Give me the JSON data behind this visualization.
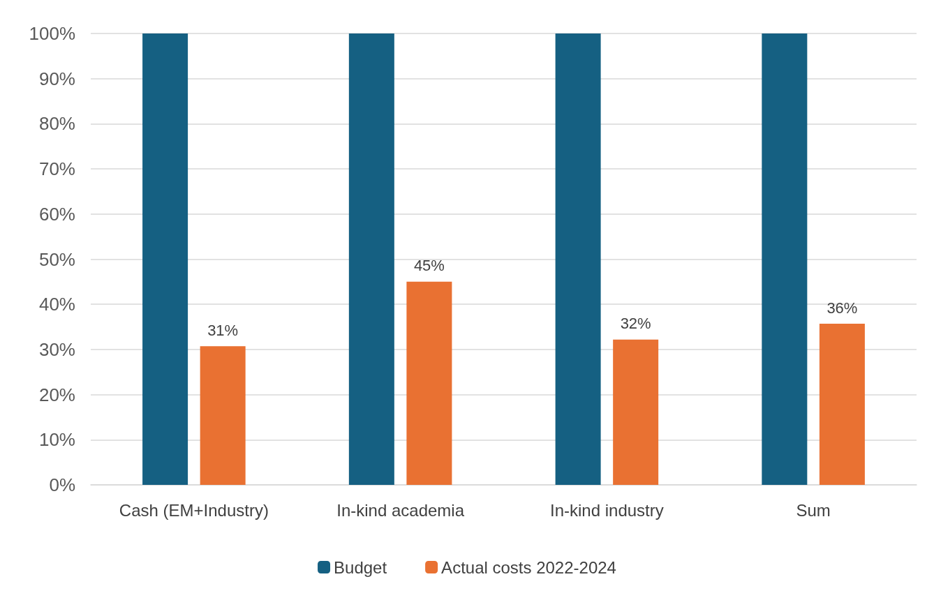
{
  "chart_data": {
    "type": "bar",
    "categories": [
      "Cash (EM+Industry)",
      "In-kind academia",
      "In-kind industry",
      "Sum"
    ],
    "series": [
      {
        "name": "Budget",
        "color": "#156082",
        "values": [
          100,
          100,
          100,
          100
        ]
      },
      {
        "name": "Actual costs 2022-2024",
        "color": "#e97132",
        "values": [
          30.7,
          45,
          32.2,
          35.7
        ],
        "value_labels": [
          "31%",
          "45%",
          "32%",
          "36%"
        ]
      }
    ],
    "ylim": [
      0,
      100
    ],
    "yticks": [
      {
        "value": 0,
        "label": "0%"
      },
      {
        "value": 10,
        "label": "10%"
      },
      {
        "value": 20,
        "label": "20%"
      },
      {
        "value": 30,
        "label": "30%"
      },
      {
        "value": 40,
        "label": "40%"
      },
      {
        "value": 50,
        "label": "50%"
      },
      {
        "value": 60,
        "label": "60%"
      },
      {
        "value": 70,
        "label": "70%"
      },
      {
        "value": 80,
        "label": "80%"
      },
      {
        "value": 90,
        "label": "90%"
      },
      {
        "value": 100,
        "label": "100%"
      }
    ],
    "grid": "y",
    "legend": "bottom"
  }
}
